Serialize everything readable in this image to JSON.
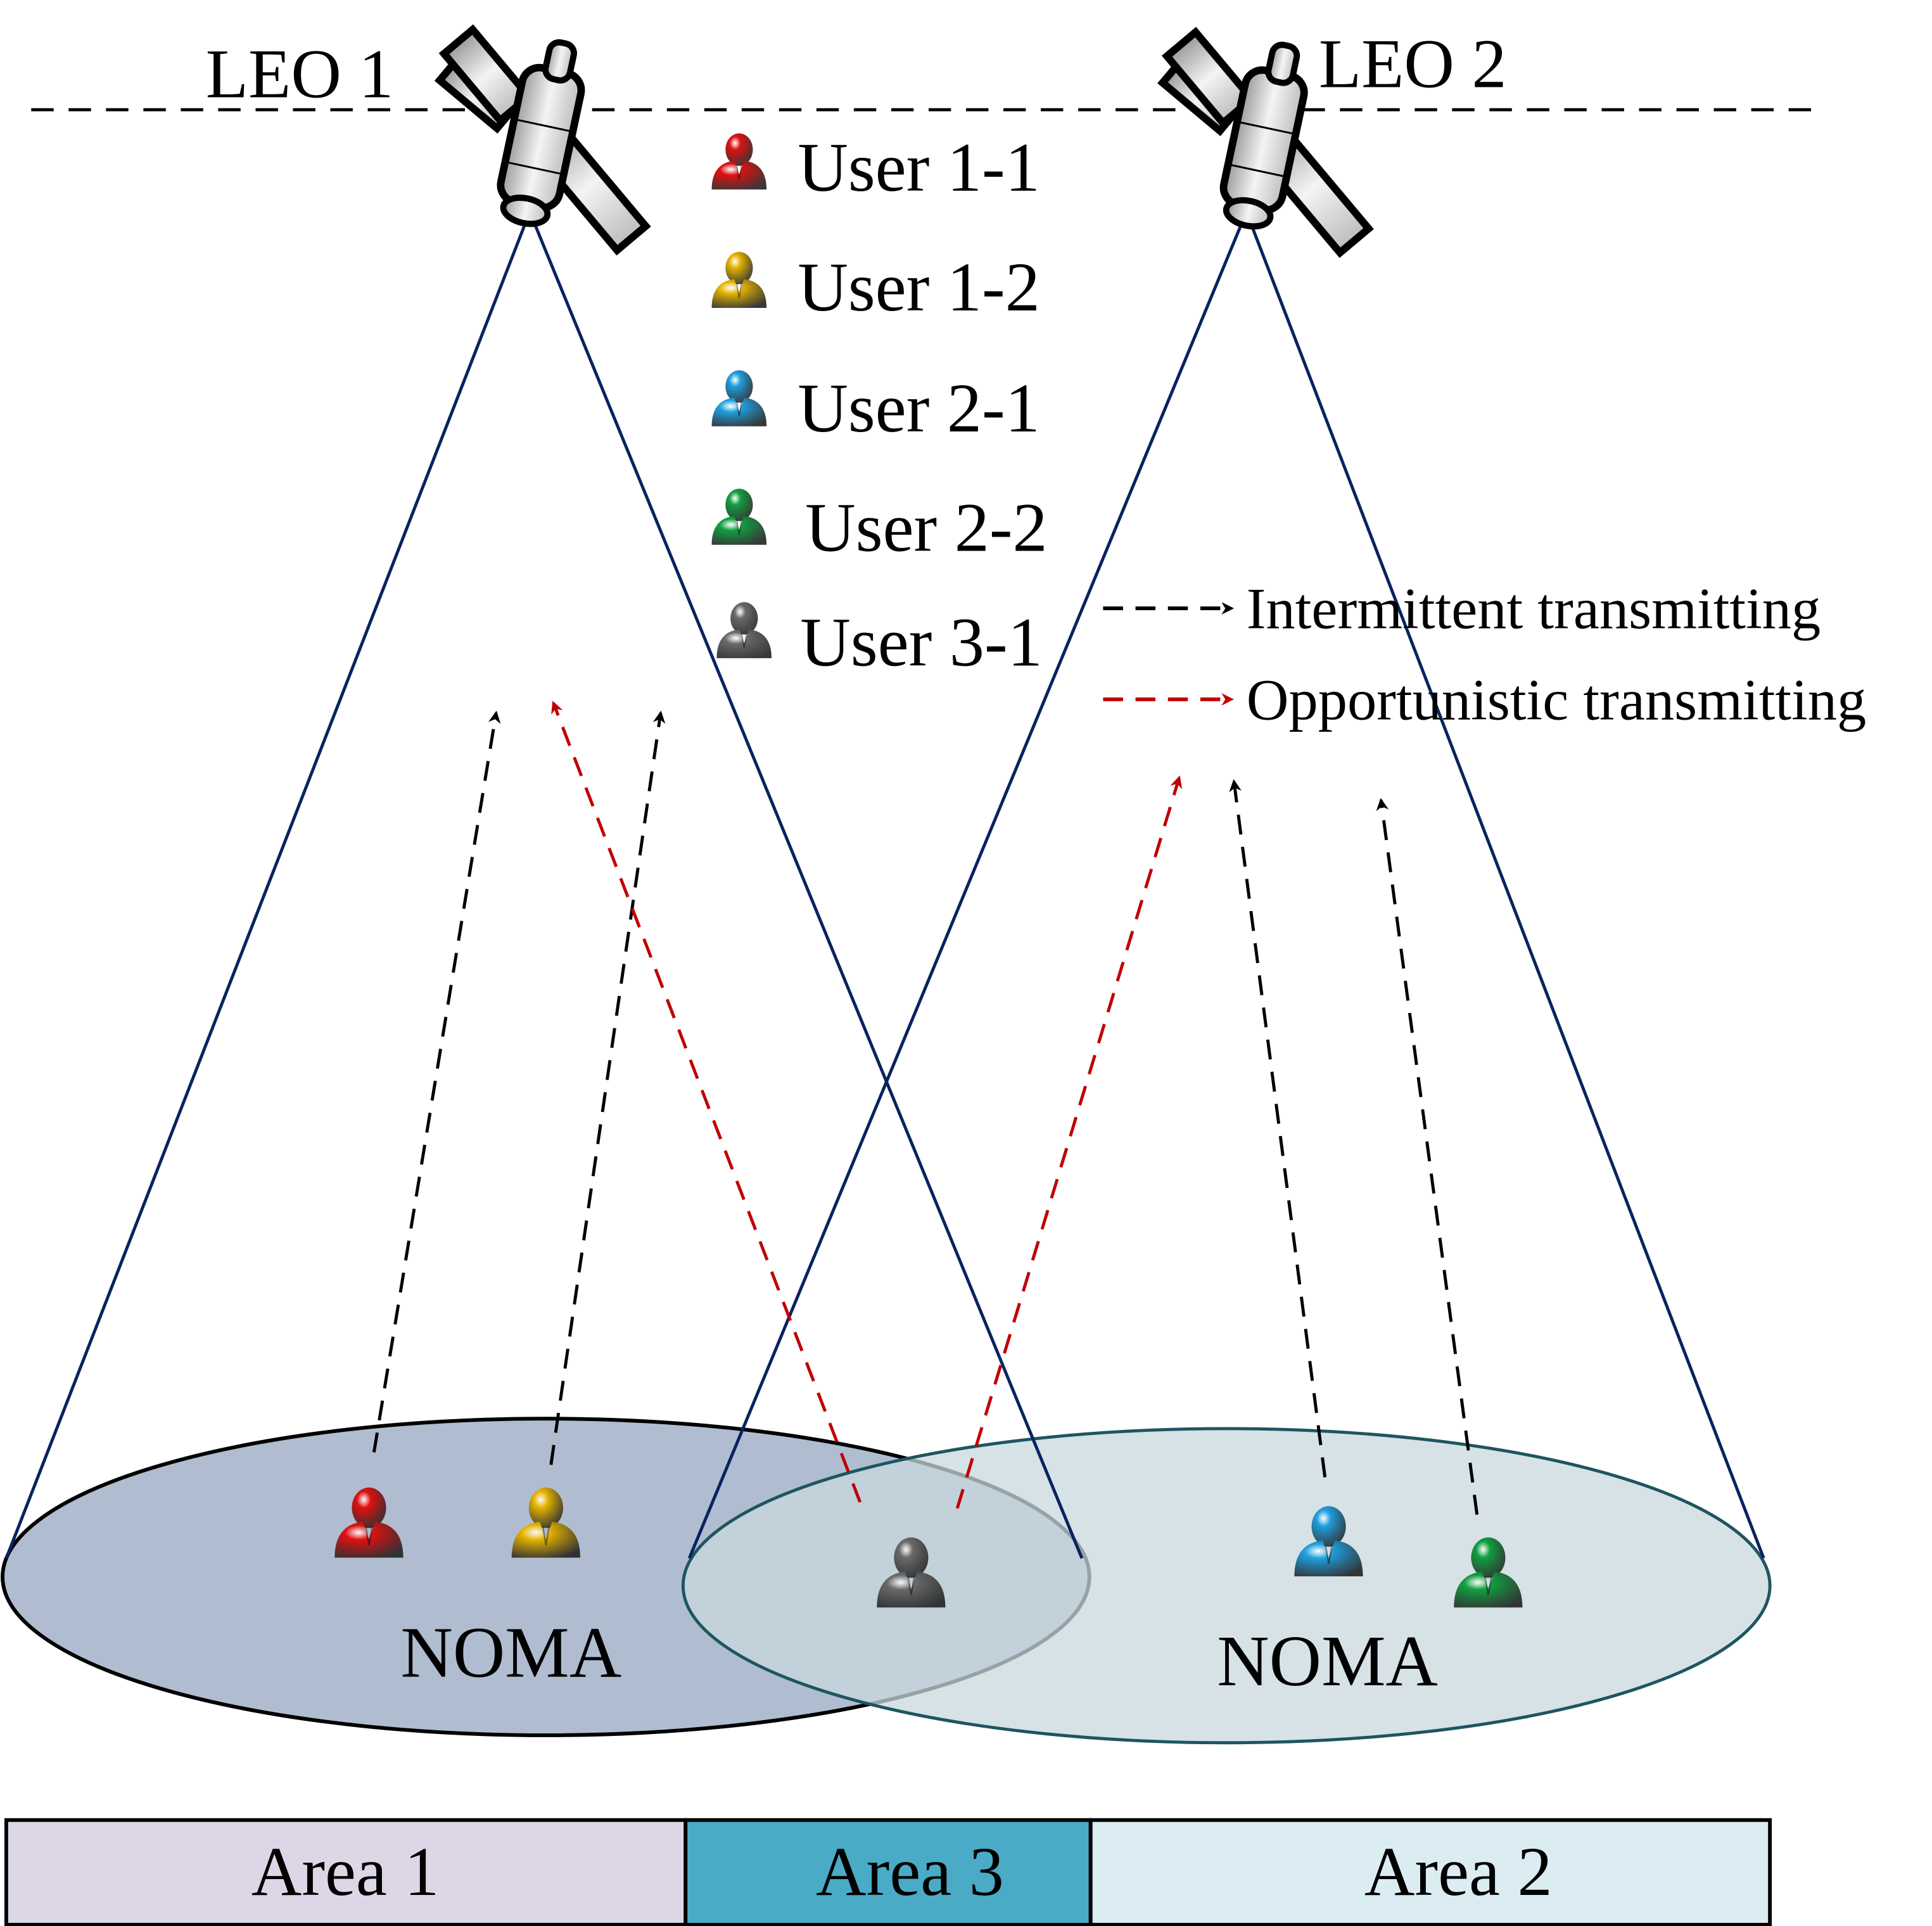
{
  "satellites": [
    {
      "label": "LEO 1"
    },
    {
      "label": "LEO 2"
    }
  ],
  "legend_users": [
    {
      "label": "User 1-1",
      "color": "#e01010"
    },
    {
      "label": "User 1-2",
      "color": "#e6b400"
    },
    {
      "label": "User 2-1",
      "color": "#1ea0e0"
    },
    {
      "label": "User 2-2",
      "color": "#10a040"
    },
    {
      "label": "User 3-1",
      "color": "#6a6a6a"
    }
  ],
  "legend_arrows": [
    {
      "label": "Intermittent transmitting",
      "color": "#000000"
    },
    {
      "label": "Opportunistic transmitting",
      "color": "#c00000"
    }
  ],
  "coverage": [
    {
      "label": "NOMA",
      "fill": "#b0bdd0",
      "stroke": "#000000"
    },
    {
      "label": "NOMA",
      "fill": "#c8d8dd",
      "stroke": "#1e5560"
    }
  ],
  "areas": [
    {
      "label": "Area 1",
      "color": "#dcd6e6"
    },
    {
      "label": "Area 3",
      "color": "#4aabc6"
    },
    {
      "label": "Area 2",
      "color": "#dbedf3"
    }
  ],
  "beam_color": "#0a2360"
}
